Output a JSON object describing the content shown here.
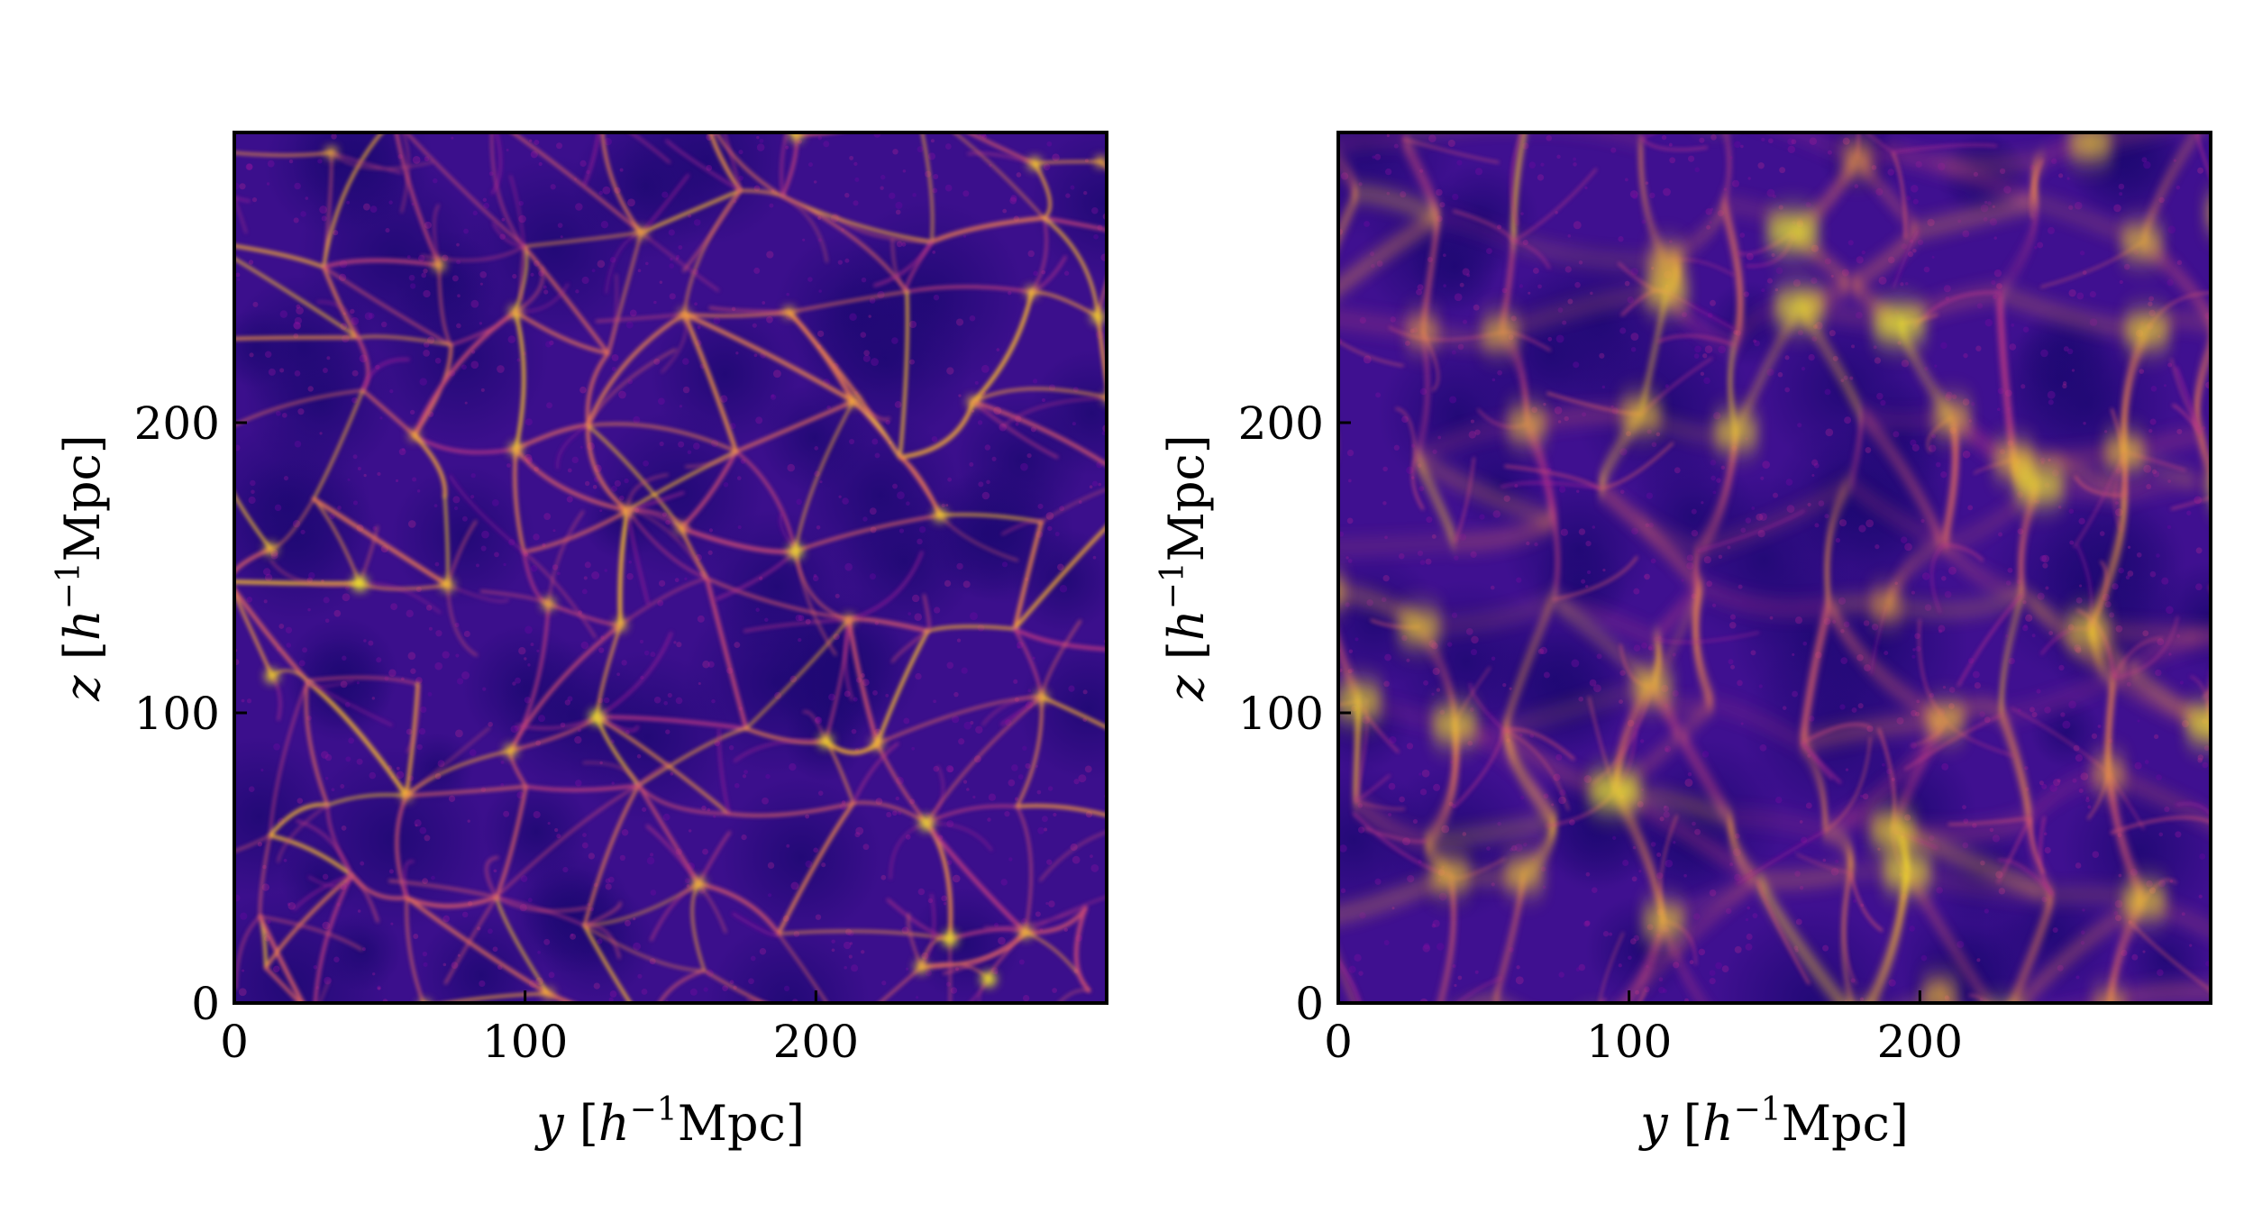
{
  "figure": {
    "panels": 2
  },
  "chart_data": [
    {
      "type": "heatmap",
      "title": "",
      "xlabel": "y [h⁻¹Mpc]",
      "ylabel": "z [h⁻¹Mpc]",
      "xlabel_parts": {
        "var": "y",
        "unit_pre": "[",
        "h": "h",
        "sup": "−1",
        "unit_post": "Mpc]"
      },
      "ylabel_parts": {
        "var": "z",
        "unit_pre": "[",
        "h": "h",
        "sup": "−1",
        "unit_post": "Mpc]"
      },
      "xlim": [
        0,
        300
      ],
      "ylim": [
        0,
        300
      ],
      "xticks": [
        "0",
        "100",
        "200"
      ],
      "yticks": [
        "0",
        "100",
        "200"
      ],
      "xtick_values": [
        0,
        100,
        200
      ],
      "ytick_values": [
        0,
        100,
        200
      ],
      "colormap": [
        "#0d0887",
        "#5c01a6",
        "#9c179e",
        "#cc4778",
        "#ed7953",
        "#fdb42f",
        "#f0f921"
      ],
      "background_color": "#3b0f8c",
      "filament_color": "#f89540",
      "style": "thin-filaments"
    },
    {
      "type": "heatmap",
      "title": "",
      "xlabel": "y [h⁻¹Mpc]",
      "ylabel": "z [h⁻¹Mpc]",
      "xlabel_parts": {
        "var": "y",
        "unit_pre": "[",
        "h": "h",
        "sup": "−1",
        "unit_post": "Mpc]"
      },
      "ylabel_parts": {
        "var": "z",
        "unit_pre": "[",
        "h": "h",
        "sup": "−1",
        "unit_post": "Mpc]"
      },
      "xlim": [
        0,
        300
      ],
      "ylim": [
        0,
        300
      ],
      "xticks": [
        "0",
        "100",
        "200"
      ],
      "yticks": [
        "0",
        "100",
        "200"
      ],
      "xtick_values": [
        0,
        100,
        200
      ],
      "ytick_values": [
        0,
        100,
        200
      ],
      "colormap": [
        "#0d0887",
        "#5c01a6",
        "#9c179e",
        "#cc4778",
        "#ed7953",
        "#fdb42f",
        "#f0f921"
      ],
      "background_color": "#3f1090",
      "filament_color": "#fca636",
      "style": "redshift-space-smeared"
    }
  ]
}
